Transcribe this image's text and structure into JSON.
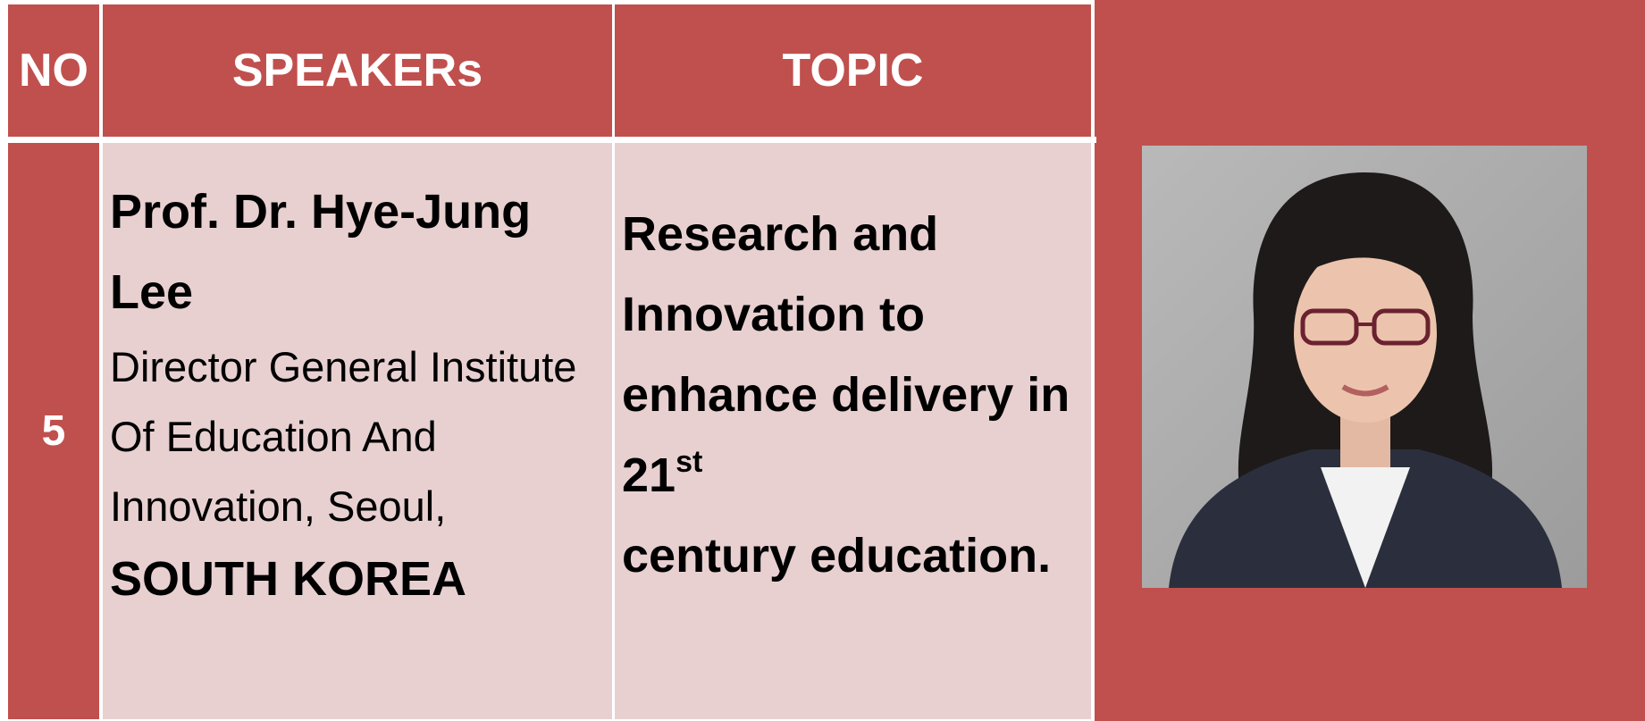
{
  "table": {
    "header": [
      "NO",
      "SPEAKERs",
      "TOPIC"
    ],
    "rows": [
      {
        "no": "5",
        "speaker": {
          "name": "Prof. Dr. Hye-Jung Lee",
          "details": "Director General Institute Of Education And Innovation, Seoul,",
          "country": "SOUTH KOREA"
        },
        "topic": {
          "before": "Research and Innovation to enhance delivery in 21",
          "sup": "st",
          "after": "century education."
        }
      }
    ]
  }
}
